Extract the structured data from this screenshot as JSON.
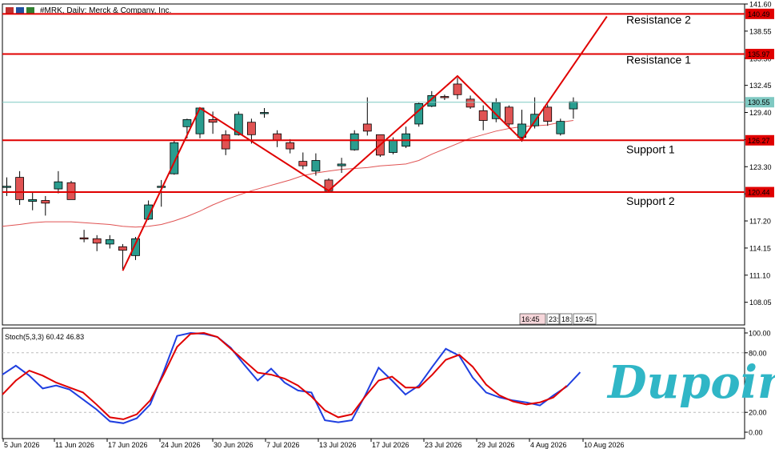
{
  "header": {
    "symbol_label": "#MRK, Daily:  Merck & Company, Inc."
  },
  "brand": {
    "logo_text": "Dupoin",
    "color": "#30b6c6"
  },
  "colors": {
    "bull": "#2a9d8f",
    "bear": "#e05353",
    "level_line": "#e00000",
    "current_price_line": "#7fc9c2",
    "ma_line": "#e05353",
    "stoch_main": "#1f3fe0",
    "stoch_signal": "#e00000"
  },
  "chart_data": [
    {
      "type": "candlestick",
      "title": "#MRK, Daily:  Merck & Company, Inc.",
      "y_ticks": [
        "141.60",
        "138.55",
        "135.50",
        "132.45",
        "129.40",
        "126.35",
        "123.30",
        "120.25",
        "117.20",
        "114.15",
        "111.10",
        "108.05"
      ],
      "ylim": [
        105.5,
        141.6
      ],
      "x_ticks": [
        "5 Jun 2026",
        "11 Jun 2026",
        "17 Jun 2026",
        "24 Jun 2026",
        "30 Jun 2026",
        "7 Jul 2026",
        "13 Jul 2026",
        "17 Jul 2026",
        "23 Jul 2026",
        "29 Jul 2026",
        "4 Aug 2026",
        "10 Aug 2026"
      ],
      "candles": [
        {
          "o": 121.1,
          "h": 122.1,
          "l": 120.0,
          "c": 121.1
        },
        {
          "o": 122.1,
          "h": 122.8,
          "l": 119.0,
          "c": 119.6
        },
        {
          "o": 119.4,
          "h": 120.5,
          "l": 118.4,
          "c": 119.6
        },
        {
          "o": 119.5,
          "h": 120.0,
          "l": 117.8,
          "c": 119.2
        },
        {
          "o": 120.8,
          "h": 122.8,
          "l": 120.3,
          "c": 121.6
        },
        {
          "o": 121.5,
          "h": 121.7,
          "l": 119.6,
          "c": 119.6
        },
        {
          "o": 115.3,
          "h": 116.2,
          "l": 114.8,
          "c": 115.2
        },
        {
          "o": 115.2,
          "h": 115.6,
          "l": 113.8,
          "c": 114.7
        },
        {
          "o": 114.6,
          "h": 115.6,
          "l": 114.1,
          "c": 115.1
        },
        {
          "o": 114.3,
          "h": 114.6,
          "l": 111.8,
          "c": 113.9
        },
        {
          "o": 113.3,
          "h": 115.4,
          "l": 112.8,
          "c": 115.2
        },
        {
          "o": 117.4,
          "h": 119.5,
          "l": 117.3,
          "c": 119.0
        },
        {
          "o": 121.0,
          "h": 121.8,
          "l": 118.8,
          "c": 121.1
        },
        {
          "o": 122.5,
          "h": 126.2,
          "l": 122.4,
          "c": 126.0
        },
        {
          "o": 127.8,
          "h": 128.7,
          "l": 126.5,
          "c": 128.6
        },
        {
          "o": 127.0,
          "h": 130.0,
          "l": 126.5,
          "c": 129.9
        },
        {
          "o": 128.6,
          "h": 129.5,
          "l": 127.0,
          "c": 128.3
        },
        {
          "o": 126.9,
          "h": 127.4,
          "l": 124.6,
          "c": 125.3
        },
        {
          "o": 126.9,
          "h": 129.5,
          "l": 126.8,
          "c": 129.2
        },
        {
          "o": 128.3,
          "h": 128.7,
          "l": 125.9,
          "c": 126.9
        },
        {
          "o": 129.3,
          "h": 129.9,
          "l": 128.8,
          "c": 129.4
        },
        {
          "o": 127.0,
          "h": 127.4,
          "l": 125.5,
          "c": 126.3
        },
        {
          "o": 126.0,
          "h": 126.4,
          "l": 124.8,
          "c": 125.3
        },
        {
          "o": 123.9,
          "h": 124.9,
          "l": 123.0,
          "c": 123.4
        },
        {
          "o": 122.8,
          "h": 124.8,
          "l": 122.3,
          "c": 124.0
        },
        {
          "o": 121.8,
          "h": 122.0,
          "l": 120.6,
          "c": 120.6
        },
        {
          "o": 123.4,
          "h": 124.3,
          "l": 122.6,
          "c": 123.6
        },
        {
          "o": 125.2,
          "h": 127.4,
          "l": 125.1,
          "c": 127.0
        },
        {
          "o": 128.1,
          "h": 131.1,
          "l": 126.8,
          "c": 127.3
        },
        {
          "o": 126.9,
          "h": 126.9,
          "l": 124.4,
          "c": 124.6
        },
        {
          "o": 124.9,
          "h": 126.6,
          "l": 124.7,
          "c": 126.3
        },
        {
          "o": 125.6,
          "h": 127.8,
          "l": 125.4,
          "c": 127.0
        },
        {
          "o": 128.1,
          "h": 130.5,
          "l": 127.8,
          "c": 130.4
        },
        {
          "o": 130.1,
          "h": 131.8,
          "l": 130.0,
          "c": 131.3
        },
        {
          "o": 131.2,
          "h": 131.4,
          "l": 130.8,
          "c": 131.1
        },
        {
          "o": 132.6,
          "h": 133.3,
          "l": 130.9,
          "c": 131.4
        },
        {
          "o": 130.9,
          "h": 131.3,
          "l": 129.8,
          "c": 130.0
        },
        {
          "o": 129.6,
          "h": 130.2,
          "l": 127.4,
          "c": 128.5
        },
        {
          "o": 128.7,
          "h": 131.0,
          "l": 128.3,
          "c": 130.5
        },
        {
          "o": 130.0,
          "h": 130.2,
          "l": 127.8,
          "c": 128.1
        },
        {
          "o": 126.6,
          "h": 129.7,
          "l": 126.1,
          "c": 128.1
        },
        {
          "o": 127.9,
          "h": 131.1,
          "l": 127.6,
          "c": 129.2
        },
        {
          "o": 130.0,
          "h": 130.3,
          "l": 127.9,
          "c": 128.4
        },
        {
          "o": 127.0,
          "h": 128.7,
          "l": 126.8,
          "c": 128.4
        },
        {
          "o": 129.8,
          "h": 131.1,
          "l": 128.7,
          "c": 130.6
        }
      ],
      "moving_average": [
        116.6,
        116.8,
        117.0,
        117.1,
        117.1,
        117.1,
        117.0,
        116.9,
        116.8,
        116.6,
        116.5,
        116.6,
        116.8,
        117.2,
        117.7,
        118.3,
        119.0,
        119.6,
        120.1,
        120.6,
        121.0,
        121.4,
        121.8,
        122.3,
        122.6,
        122.8,
        123.0,
        123.1,
        123.2,
        123.4,
        123.5,
        123.6,
        124.0,
        124.7,
        125.3,
        125.9,
        126.5,
        126.9,
        127.3,
        127.6,
        127.8,
        127.9,
        128.0,
        128.3,
        128.5
      ],
      "levels": [
        {
          "label": "Resistance 2",
          "value": "140.49"
        },
        {
          "label": "Resistance 1",
          "value": "135.97"
        },
        {
          "label": "Support 1",
          "value": "126.27"
        },
        {
          "label": "Support 2",
          "value": "120.44"
        }
      ],
      "current_price": "130.55",
      "zigzag": [
        {
          "bar": 9,
          "price": 111.6
        },
        {
          "bar": 15,
          "price": 129.9
        },
        {
          "bar": 25,
          "price": 120.6
        },
        {
          "bar": 35,
          "price": 133.5
        },
        {
          "bar": 40,
          "price": 126.3
        },
        {
          "bar": 46.6,
          "price": 140.2
        }
      ],
      "sessions": [
        "16:45",
        "23:",
        "18:",
        "19:45"
      ]
    },
    {
      "type": "line",
      "label": "Stoch(5,3,3) 60.42 46.83",
      "y_ticks": [
        "100.00",
        "80.00",
        "20.00",
        "0.00"
      ],
      "levels": [
        80,
        20
      ],
      "ylim": [
        0,
        100
      ],
      "series": [
        {
          "name": "main",
          "values": [
            58.0,
            67.0,
            57.0,
            44.0,
            47.0,
            43.0,
            33.0,
            23.0,
            11.0,
            9.0,
            14.0,
            28.0,
            61.0,
            97.0,
            100.0,
            99.0,
            96.0,
            85.0,
            68.0,
            52.0,
            64.0,
            50.0,
            42.0,
            40.0,
            12.0,
            10.0,
            12.0,
            37.0,
            65.0,
            52.0,
            38.0,
            47.0,
            66.0,
            84.0,
            77.0,
            55.0,
            40.0,
            35.0,
            32.0,
            30.0,
            27.0,
            37.0,
            46.0,
            60.4
          ]
        },
        {
          "name": "signal",
          "values": [
            38.0,
            52.0,
            62.0,
            57.0,
            50.0,
            45.0,
            40.0,
            28.0,
            15.0,
            13.0,
            18.0,
            32.0,
            58.0,
            86.0,
            99.0,
            100.0,
            96.0,
            84.0,
            72.0,
            60.0,
            58.0,
            54.0,
            47.0,
            36.0,
            22.0,
            15.0,
            18.0,
            36.0,
            52.0,
            56.0,
            45.0,
            45.0,
            58.0,
            73.0,
            78.0,
            66.0,
            48.0,
            37.0,
            31.0,
            28.0,
            30.0,
            35.0,
            46.8
          ]
        }
      ]
    }
  ]
}
